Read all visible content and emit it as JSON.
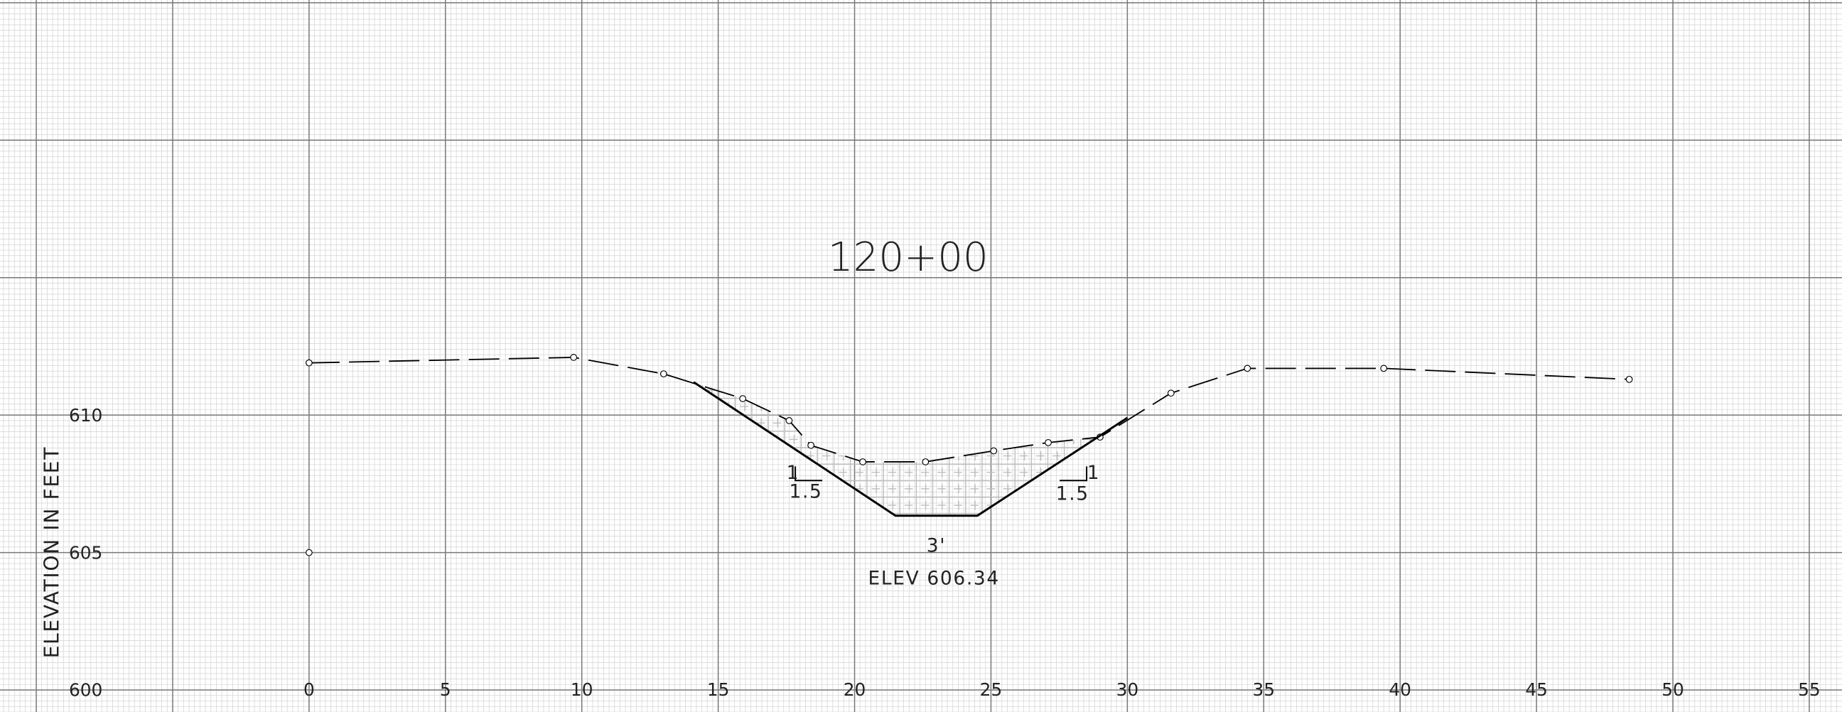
{
  "chart_data": {
    "type": "line",
    "title": "120+00",
    "y_label": "ELEVATION IN FEET",
    "xlim": [
      -11.33,
      56.2
    ],
    "ylim": [
      599.2,
      625.1
    ],
    "xticks": [
      0,
      5,
      10,
      15,
      20,
      25,
      30,
      35,
      40,
      45,
      50,
      55
    ],
    "yticks": [
      600,
      605,
      610
    ],
    "grid": true,
    "series": [
      {
        "color": "#000000",
        "style": "dashed",
        "markers": true,
        "x": [
          0,
          9.7,
          13.0,
          15.9,
          17.6,
          18.4,
          20.3,
          22.6,
          25.1,
          27.1,
          29.0,
          31.6,
          34.4,
          39.4,
          48.4
        ],
        "values": [
          611.9,
          612.1,
          611.5,
          610.6,
          609.8,
          608.9,
          608.3,
          608.3,
          608.7,
          609.0,
          609.2,
          610.8,
          611.7,
          611.7,
          611.3
        ]
      },
      {
        "color": "#000000",
        "style": "solid",
        "markers": false,
        "x": [
          14.1,
          21.5,
          24.5,
          30.0
        ],
        "values": [
          611.2,
          606.34,
          606.34,
          609.9
        ]
      },
      {
        "color": "#000000",
        "style": "none",
        "markers": true,
        "x": [
          0
        ],
        "values": [
          605
        ]
      }
    ],
    "annotations": [
      {
        "text": "1"
      },
      {
        "text": "1.5"
      },
      {
        "text": "1"
      },
      {
        "text": "1.5"
      },
      {
        "text": "3'"
      },
      {
        "text": "ELEV 606.34"
      }
    ]
  }
}
